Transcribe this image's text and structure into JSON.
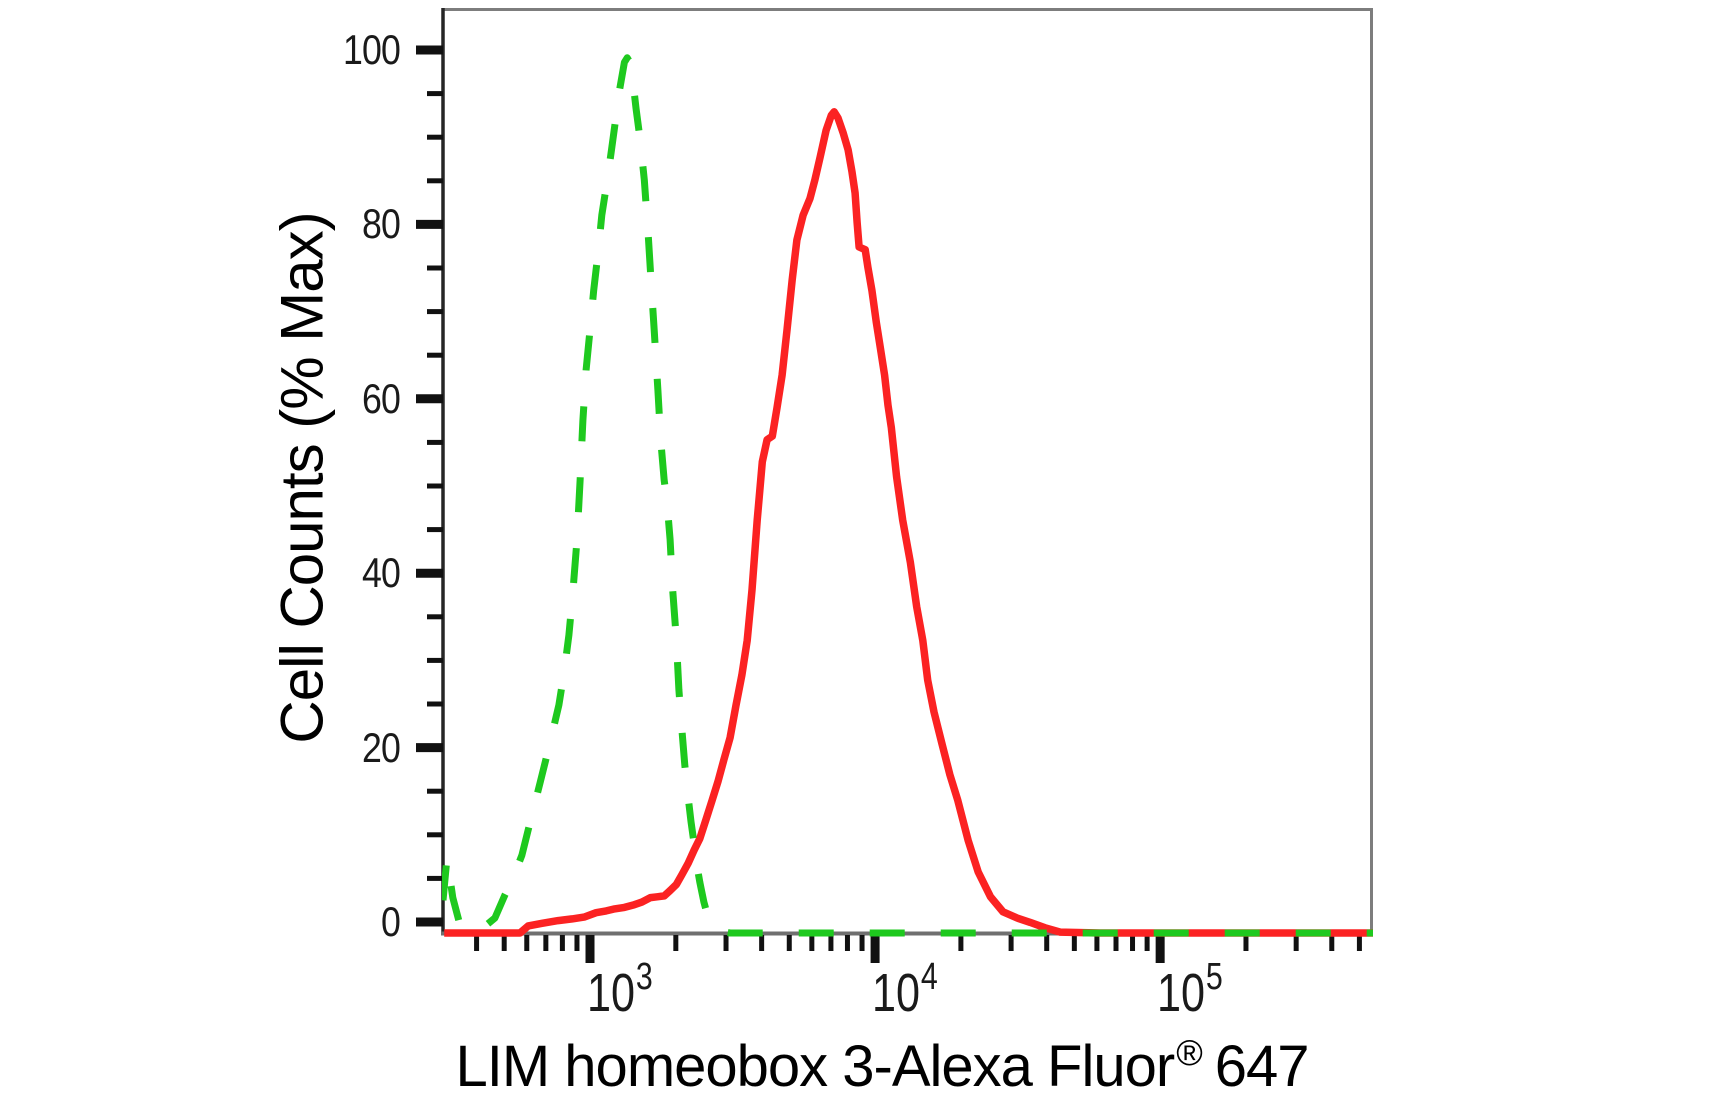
{
  "figure": {
    "background": "#ffffff",
    "x_axis_title": {
      "text": "LIM homeobox 3-Alexa Fluor",
      "registered_mark": "®",
      "suffix": "647"
    },
    "y_axis_title": "Cell Counts (% Max)"
  },
  "chart_data": {
    "type": "line",
    "title": "",
    "xlabel": "LIM homeobox 3-Alexa Fluor® 647",
    "ylabel": "Cell Counts (% Max)",
    "x_scale": "log10",
    "x_range": [
      305,
      558000
    ],
    "ylim": [
      0,
      100
    ],
    "grid": false,
    "legend": "none",
    "x_major_ticks": [
      {
        "value": 1000,
        "base": "10",
        "exp": "3"
      },
      {
        "value": 10000,
        "base": "10",
        "exp": "4"
      },
      {
        "value": 100000,
        "base": "10",
        "exp": "5"
      }
    ],
    "y_major_ticks": [
      0,
      20,
      40,
      60,
      80,
      100
    ],
    "y_minor_tick_step": 5,
    "colors": {
      "box_border": "#7d7d7d",
      "axis_left": "#262626",
      "axis_bottom": "#6f6f6f",
      "ticks": "#111111",
      "text": "#000000"
    },
    "series": [
      {
        "name": "red-solid-histogram",
        "color": "#fb2222",
        "line_style": "solid",
        "line_width": 7.5,
        "points": [
          [
            308,
            0
          ],
          [
            568,
            0
          ],
          [
            607,
            0.8
          ],
          [
            679,
            1.1
          ],
          [
            773,
            1.4
          ],
          [
            865,
            1.6
          ],
          [
            953,
            1.8
          ],
          [
            1050,
            2.3
          ],
          [
            1140,
            2.5
          ],
          [
            1210,
            2.7
          ],
          [
            1320,
            2.9
          ],
          [
            1430,
            3.2
          ],
          [
            1520,
            3.5
          ],
          [
            1630,
            4
          ],
          [
            1720,
            4.1
          ],
          [
            1820,
            4.2
          ],
          [
            1910,
            4.8
          ],
          [
            2010,
            5.5
          ],
          [
            2100,
            6.6
          ],
          [
            2210,
            7.9
          ],
          [
            2320,
            9.4
          ],
          [
            2430,
            10.7
          ],
          [
            2550,
            12.8
          ],
          [
            2680,
            15
          ],
          [
            2810,
            17.1
          ],
          [
            2950,
            19.6
          ],
          [
            3100,
            22.1
          ],
          [
            3250,
            25.7
          ],
          [
            3410,
            29.2
          ],
          [
            3560,
            33.1
          ],
          [
            3700,
            38.8
          ],
          [
            3860,
            46.7
          ],
          [
            4020,
            53.3
          ],
          [
            4180,
            55.8
          ],
          [
            4360,
            56.2
          ],
          [
            4530,
            59.4
          ],
          [
            4720,
            63.1
          ],
          [
            4910,
            68.2
          ],
          [
            5120,
            73.9
          ],
          [
            5320,
            78.4
          ],
          [
            5590,
            81.2
          ],
          [
            5910,
            83.1
          ],
          [
            6150,
            85.2
          ],
          [
            6410,
            87.7
          ],
          [
            6730,
            90.8
          ],
          [
            7020,
            92.5
          ],
          [
            7180,
            92.9
          ],
          [
            7410,
            92.2
          ],
          [
            7730,
            90.5
          ],
          [
            8040,
            88.6
          ],
          [
            8300,
            86.1
          ],
          [
            8510,
            83.7
          ],
          [
            8650,
            80.4
          ],
          [
            8790,
            77.6
          ],
          [
            9230,
            77.3
          ],
          [
            9440,
            75.3
          ],
          [
            9750,
            72.7
          ],
          [
            10100,
            69.1
          ],
          [
            10400,
            66.5
          ],
          [
            10800,
            63.1
          ],
          [
            11100,
            59.7
          ],
          [
            11400,
            57.2
          ],
          [
            11900,
            51.6
          ],
          [
            12500,
            46.7
          ],
          [
            13300,
            41.9
          ],
          [
            14000,
            36.9
          ],
          [
            14700,
            33.1
          ],
          [
            15300,
            28.6
          ],
          [
            16100,
            25
          ],
          [
            17200,
            21.3
          ],
          [
            18300,
            17.9
          ],
          [
            19500,
            15
          ],
          [
            21200,
            10.5
          ],
          [
            23000,
            6.9
          ],
          [
            25400,
            4.1
          ],
          [
            28100,
            2.4
          ],
          [
            31500,
            1.7
          ],
          [
            35000,
            1.2
          ],
          [
            39400,
            0.6
          ],
          [
            44600,
            0.1
          ],
          [
            61500,
            0
          ],
          [
            558000,
            0
          ]
        ]
      },
      {
        "name": "green-dashed-histogram",
        "color": "#1ec91e",
        "line_style": "dashed",
        "line_width": 7,
        "points": [
          [
            305,
            3.7
          ],
          [
            315,
            8.5
          ],
          [
            330,
            4
          ],
          [
            350,
            0.9
          ],
          [
            379,
            0.3
          ],
          [
            422,
            0.6
          ],
          [
            464,
            1.7
          ],
          [
            503,
            4.3
          ],
          [
            537,
            6.2
          ],
          [
            577,
            8.8
          ],
          [
            625,
            13.3
          ],
          [
            668,
            17
          ],
          [
            706,
            20.1
          ],
          [
            742,
            23
          ],
          [
            778,
            25.8
          ],
          [
            811,
            29.5
          ],
          [
            843,
            33.7
          ],
          [
            871,
            38.6
          ],
          [
            900,
            44.5
          ],
          [
            923,
            51.2
          ],
          [
            944,
            58
          ],
          [
            969,
            63.7
          ],
          [
            1000,
            68.2
          ],
          [
            1030,
            72.7
          ],
          [
            1070,
            77.3
          ],
          [
            1100,
            81.2
          ],
          [
            1150,
            85.2
          ],
          [
            1190,
            88.6
          ],
          [
            1230,
            92
          ],
          [
            1270,
            95.4
          ],
          [
            1320,
            98.5
          ],
          [
            1350,
            99
          ],
          [
            1380,
            98.5
          ],
          [
            1420,
            95.9
          ],
          [
            1450,
            93.3
          ],
          [
            1500,
            89.7
          ],
          [
            1550,
            85.2
          ],
          [
            1600,
            79
          ],
          [
            1640,
            73.3
          ],
          [
            1680,
            68.2
          ],
          [
            1730,
            61.4
          ],
          [
            1770,
            55.8
          ],
          [
            1820,
            51.2
          ],
          [
            1860,
            49
          ],
          [
            1910,
            44.5
          ],
          [
            1950,
            38.8
          ],
          [
            2010,
            33.1
          ],
          [
            2050,
            27.5
          ],
          [
            2100,
            23
          ],
          [
            2150,
            19
          ],
          [
            2210,
            15.3
          ],
          [
            2260,
            12.6
          ],
          [
            2320,
            10
          ],
          [
            2370,
            7.7
          ],
          [
            2430,
            5.7
          ],
          [
            2510,
            3.5
          ],
          [
            2590,
            1.9
          ],
          [
            2700,
            0.8
          ],
          [
            2860,
            0.2
          ],
          [
            3100,
            0
          ],
          [
            558000,
            0
          ]
        ]
      }
    ]
  }
}
